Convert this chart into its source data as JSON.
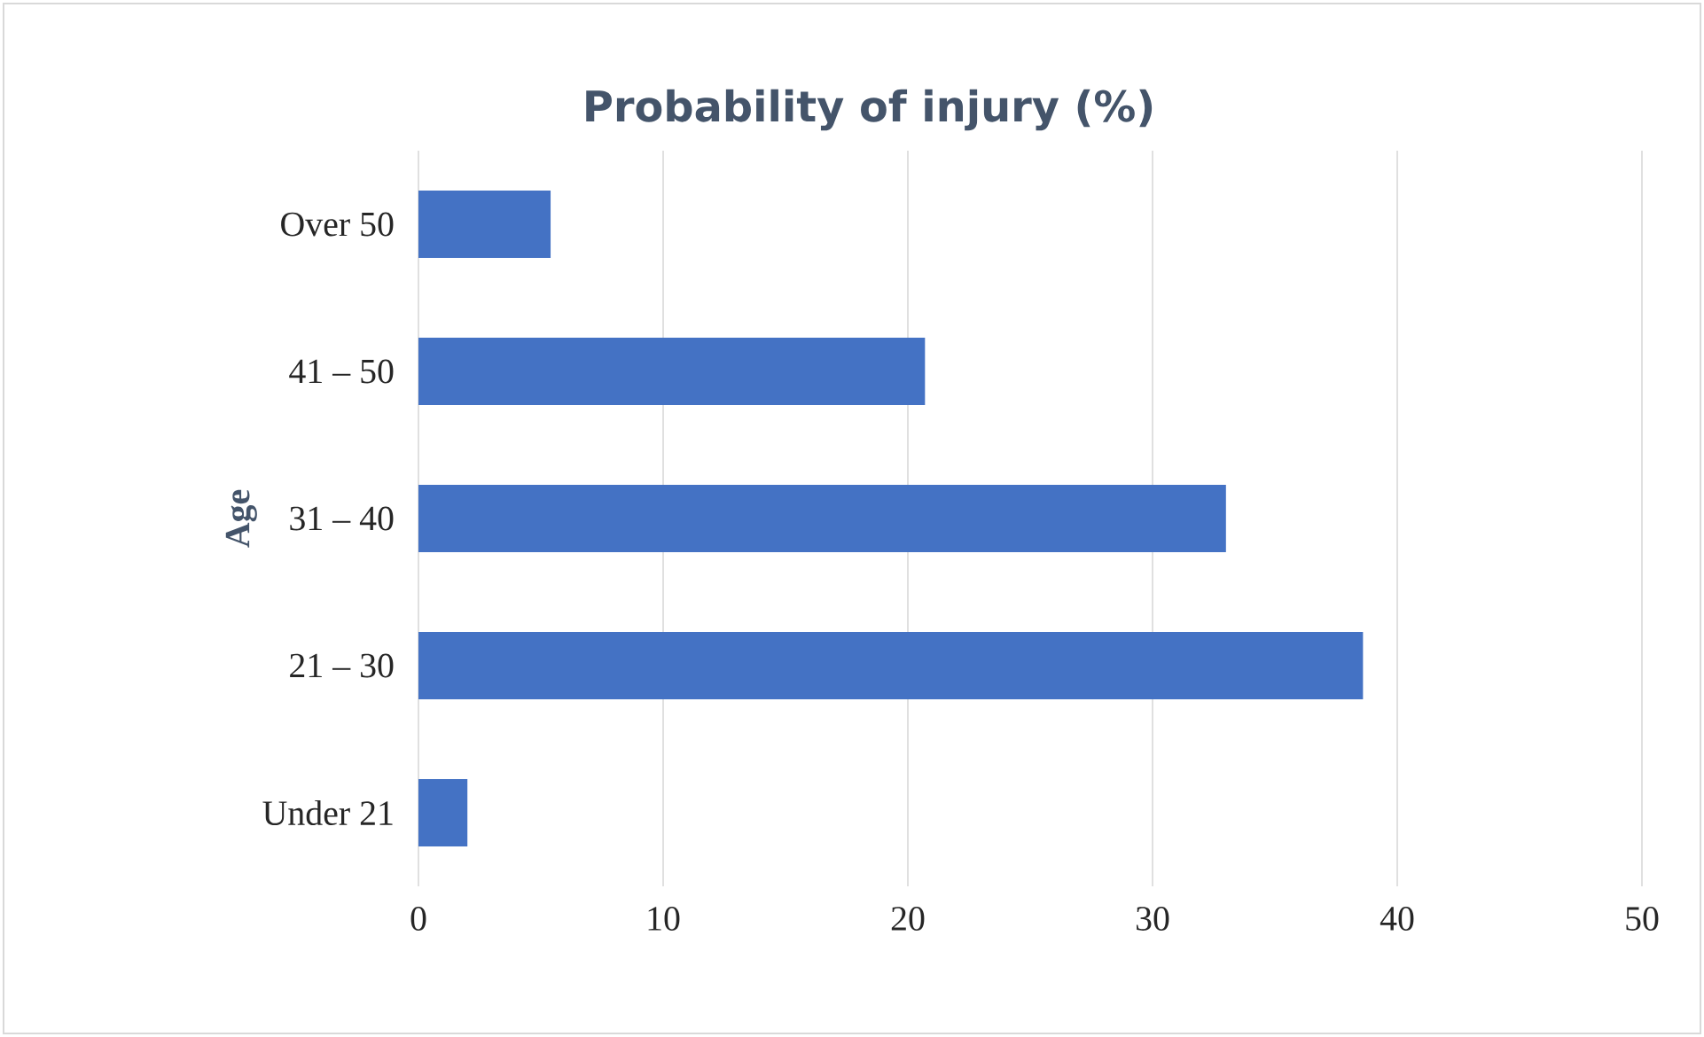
{
  "chart_data": {
    "type": "bar",
    "orientation": "horizontal",
    "title": "Probability of injury (%)",
    "ylabel": "Age",
    "categories": [
      "Over 50",
      "41 – 50",
      "31 – 40",
      "21 – 30",
      "Under 21"
    ],
    "values": [
      5.4,
      20.7,
      33.0,
      38.6,
      2.0
    ],
    "color": "#4472c4",
    "xlim": [
      0,
      50
    ],
    "xticks": [
      0,
      10,
      20,
      30,
      40,
      50
    ],
    "grid": "x"
  }
}
